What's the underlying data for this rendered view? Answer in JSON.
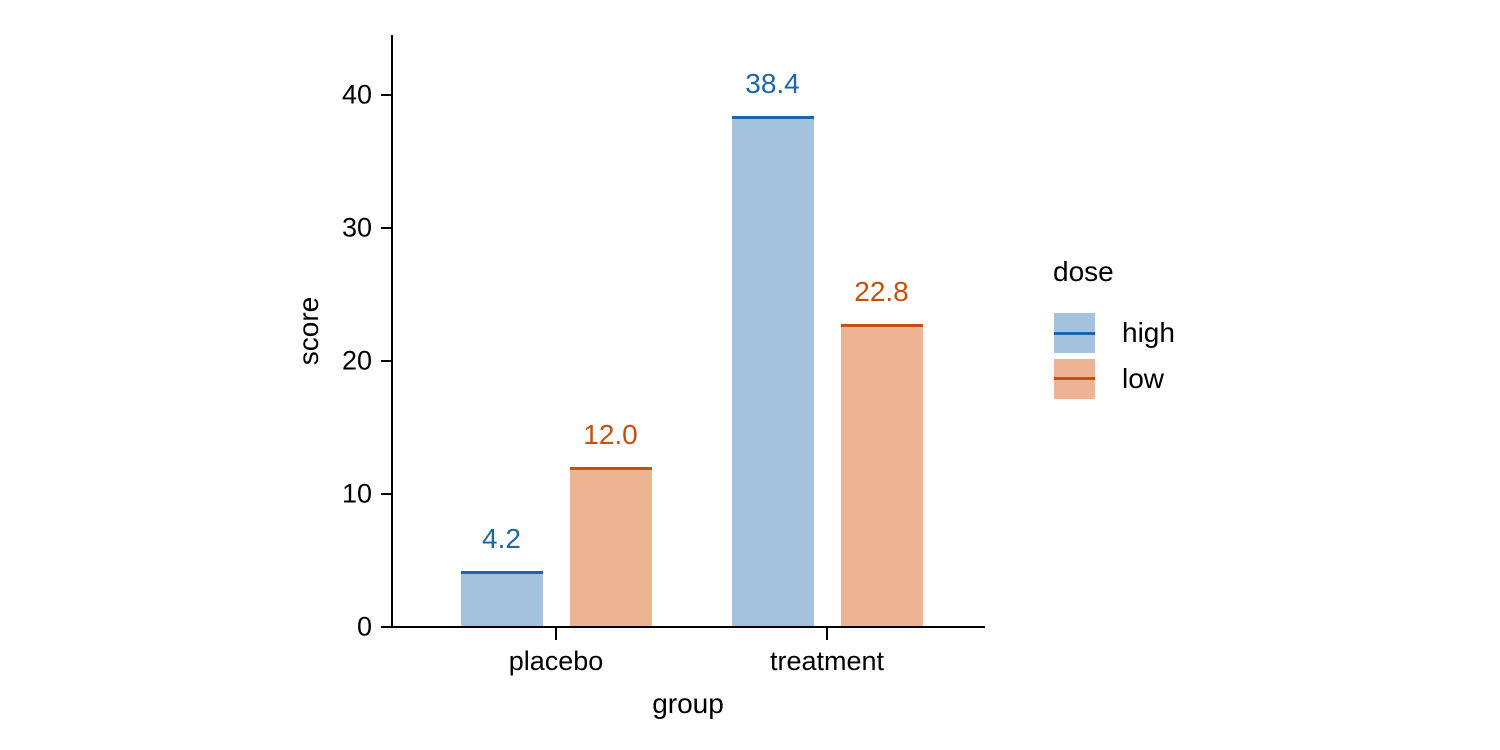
{
  "chart_data": {
    "type": "bar",
    "title": "",
    "xlabel": "group",
    "ylabel": "score",
    "categories": [
      "placebo",
      "treatment"
    ],
    "series": [
      {
        "name": "high",
        "values": [
          4.2,
          38.4
        ],
        "value_labels": [
          "4.2",
          "38.4"
        ],
        "line_color": "#1d65a9",
        "fill_color": "#a4c2dd"
      },
      {
        "name": "low",
        "values": [
          12.0,
          22.8
        ],
        "value_labels": [
          "12.0",
          "22.8"
        ],
        "line_color": "#c4500c",
        "fill_color": "#ecb492"
      }
    ],
    "yticks": [
      0,
      10,
      20,
      30,
      40
    ],
    "ytick_labels": [
      "0",
      "10",
      "20",
      "30",
      "40"
    ],
    "ylim": [
      0,
      44.5
    ],
    "grid": false,
    "legend": {
      "title": "dose",
      "entries": [
        "high",
        "low"
      ],
      "position": "right-center"
    },
    "background_color": "#ffffff",
    "axis_color": "#000000",
    "text_color": "#000000"
  }
}
